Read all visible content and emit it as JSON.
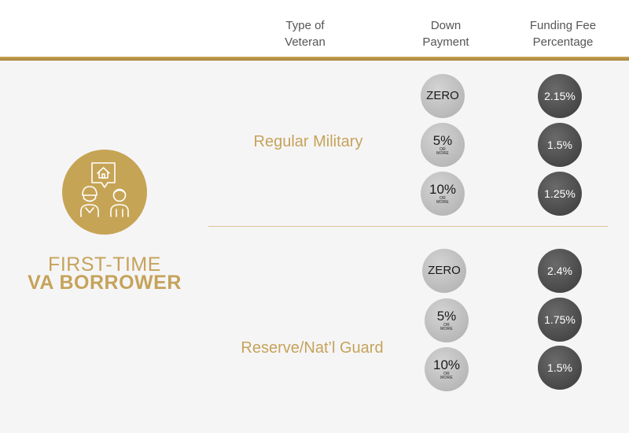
{
  "header": {
    "col_type": [
      "Type of",
      "Veteran"
    ],
    "col_down": [
      "Down",
      "Payment"
    ],
    "col_fee": [
      "Funding Fee",
      "Percentage"
    ]
  },
  "title": {
    "line1": "FIRST-TIME",
    "line2": "VA BORROWER"
  },
  "icon": "veterans-house-icon",
  "colors": {
    "gold": "#c6a455",
    "down_circle": "#bdbdbd",
    "fee_circle": "#4a4a4a"
  },
  "groups": [
    {
      "veteran": "Regular Military",
      "rows": [
        {
          "down": "ZERO",
          "down_sub": "",
          "fee": "2.15%"
        },
        {
          "down": "5%",
          "down_sub": "OR MORE",
          "fee": "1.5%"
        },
        {
          "down": "10%",
          "down_sub": "OR MORE",
          "fee": "1.25%"
        }
      ]
    },
    {
      "veteran": "Reserve/Nat’l Guard",
      "rows": [
        {
          "down": "ZERO",
          "down_sub": "",
          "fee": "2.4%"
        },
        {
          "down": "5%",
          "down_sub": "OR MORE",
          "fee": "1.75%"
        },
        {
          "down": "10%",
          "down_sub": "OR MORE",
          "fee": "1.5%"
        }
      ]
    }
  ]
}
